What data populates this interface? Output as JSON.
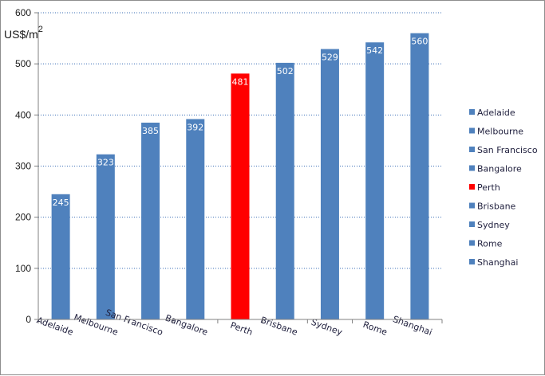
{
  "chart_data": {
    "type": "bar",
    "ylabel_main": "US$/m",
    "ylabel_sup": "2",
    "ylim": [
      0,
      600
    ],
    "yticks": [
      0,
      100,
      200,
      300,
      400,
      500,
      600
    ],
    "grid": true,
    "legend_position": "right",
    "categories": [
      "Adelaide",
      "Melbourne",
      "San Francisco",
      "Bangalore",
      "Perth",
      "Brisbane",
      "Sydney",
      "Rome",
      "Shanghai"
    ],
    "values": [
      245,
      323,
      385,
      392,
      481,
      502,
      529,
      542,
      560
    ],
    "colors": [
      "#4f81bd",
      "#4f81bd",
      "#4f81bd",
      "#4f81bd",
      "#ff0000",
      "#4f81bd",
      "#4f81bd",
      "#4f81bd",
      "#4f81bd"
    ]
  }
}
